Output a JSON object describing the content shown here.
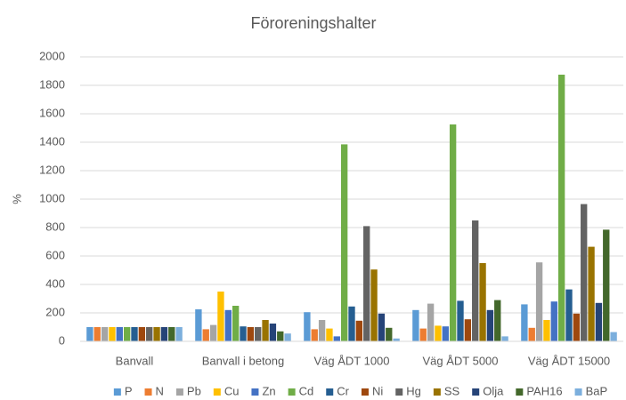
{
  "chart_data": {
    "type": "bar",
    "title": "Föroreningshalter",
    "y_label": "%",
    "categories": [
      "Banvall",
      "Banvall i betong",
      "Väg ÅDT 1000",
      "Väg ÅDT 5000",
      "Väg ÅDT 15000"
    ],
    "series": [
      {
        "name": "P",
        "color": "#5B9BD5",
        "values": [
          100,
          225,
          205,
          220,
          260
        ]
      },
      {
        "name": "N",
        "color": "#ED7D31",
        "values": [
          100,
          85,
          85,
          90,
          95
        ]
      },
      {
        "name": "Pb",
        "color": "#A5A5A5",
        "values": [
          100,
          115,
          150,
          265,
          555
        ]
      },
      {
        "name": "Cu",
        "color": "#FFC000",
        "values": [
          100,
          350,
          90,
          110,
          150
        ]
      },
      {
        "name": "Zn",
        "color": "#4472C4",
        "values": [
          100,
          220,
          35,
          105,
          280
        ]
      },
      {
        "name": "Cd",
        "color": "#70AD47",
        "values": [
          100,
          250,
          1385,
          1525,
          1875
        ]
      },
      {
        "name": "Cr",
        "color": "#255E91",
        "values": [
          100,
          105,
          245,
          285,
          365
        ]
      },
      {
        "name": "Ni",
        "color": "#9E480E",
        "values": [
          100,
          100,
          145,
          155,
          195
        ]
      },
      {
        "name": "Hg",
        "color": "#636363",
        "values": [
          100,
          100,
          810,
          850,
          965
        ]
      },
      {
        "name": "SS",
        "color": "#997300",
        "values": [
          100,
          150,
          505,
          550,
          665
        ]
      },
      {
        "name": "Olja",
        "color": "#264478",
        "values": [
          100,
          125,
          195,
          220,
          270
        ]
      },
      {
        "name": "PAH16",
        "color": "#43682B",
        "values": [
          100,
          70,
          95,
          290,
          785
        ]
      },
      {
        "name": "BaP",
        "color": "#7CAFDD",
        "values": [
          100,
          55,
          20,
          35,
          65
        ]
      }
    ],
    "ylim": [
      0,
      2000
    ],
    "yticks": [
      0,
      200,
      400,
      600,
      800,
      1000,
      1200,
      1400,
      1600,
      1800,
      2000
    ],
    "grid": true,
    "legend": "bottom"
  }
}
